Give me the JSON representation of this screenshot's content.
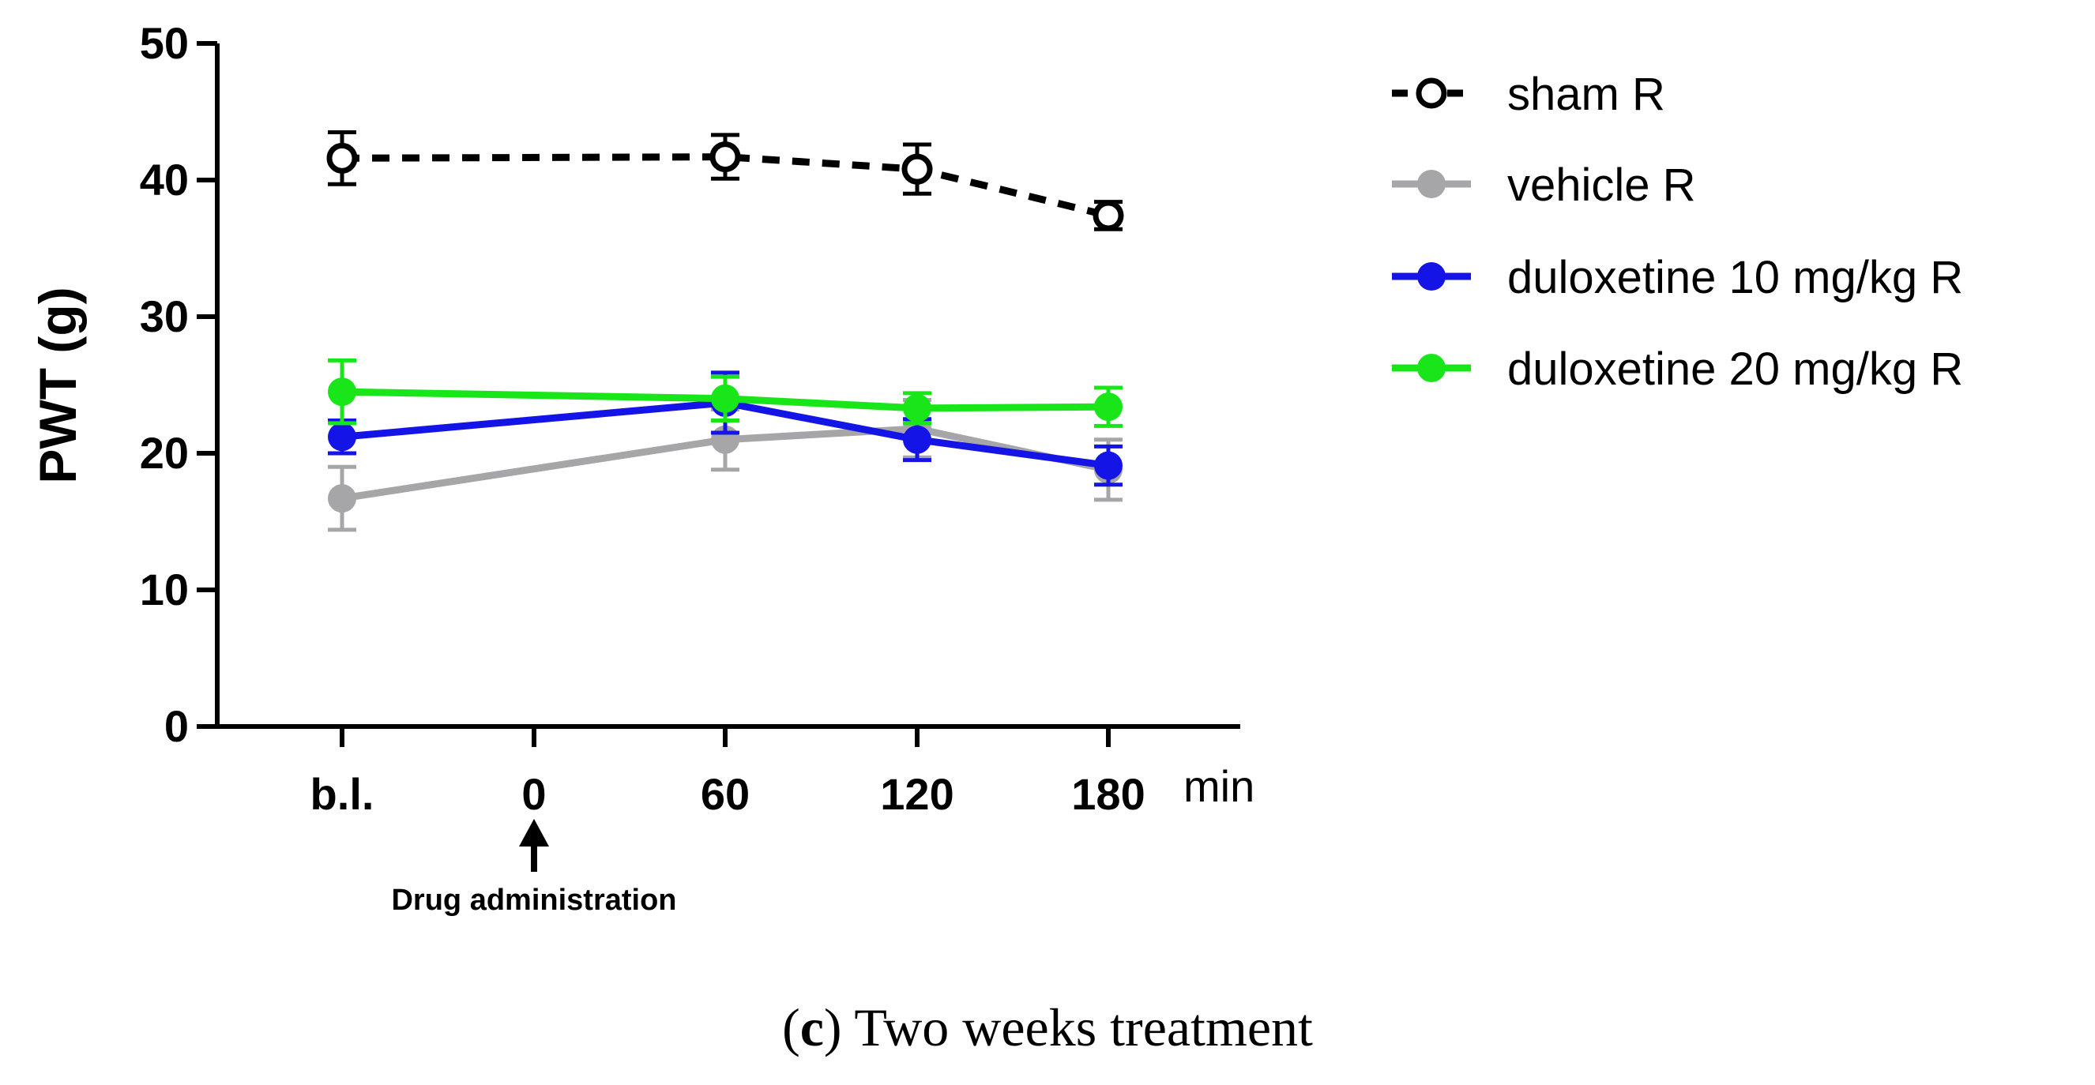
{
  "chart_data": {
    "type": "line",
    "title": "",
    "ylabel": "PWT (g)",
    "xlabel": "",
    "x_unit_label": "min",
    "ylim": [
      0,
      50
    ],
    "yticks": [
      0,
      10,
      20,
      30,
      40,
      50
    ],
    "categories": [
      "b.l.",
      "0",
      "60",
      "120",
      "180"
    ],
    "error_bars": true,
    "series": [
      {
        "name": "sham R",
        "color": "#000000",
        "style": "dashed",
        "marker": "open-circle",
        "values": [
          41.6,
          null,
          41.7,
          40.8,
          37.4
        ],
        "errors": [
          1.9,
          null,
          1.6,
          1.8,
          1.0
        ]
      },
      {
        "name": "vehicle R",
        "color": "#a6a6a8",
        "style": "solid",
        "marker": "filled-circle",
        "values": [
          16.7,
          null,
          21.0,
          21.8,
          18.8
        ],
        "errors": [
          2.3,
          null,
          2.2,
          2.1,
          2.2
        ]
      },
      {
        "name": "duloxetine 10 mg/kg R",
        "color": "#1414e6",
        "style": "solid",
        "marker": "filled-circle",
        "values": [
          21.2,
          null,
          23.7,
          21.0,
          19.1
        ],
        "errors": [
          1.2,
          null,
          2.2,
          1.5,
          1.4
        ]
      },
      {
        "name": "duloxetine 20 mg/kg R",
        "color": "#19e619",
        "style": "solid",
        "marker": "filled-circle",
        "values": [
          24.5,
          null,
          24.0,
          23.3,
          23.4
        ],
        "errors": [
          2.3,
          null,
          1.6,
          1.1,
          1.4
        ]
      }
    ],
    "annotation": {
      "label": "Drug administration",
      "at": "0"
    },
    "legend_position": "top-right"
  },
  "caption": {
    "letter": "c",
    "text": "Two weeks treatment"
  }
}
